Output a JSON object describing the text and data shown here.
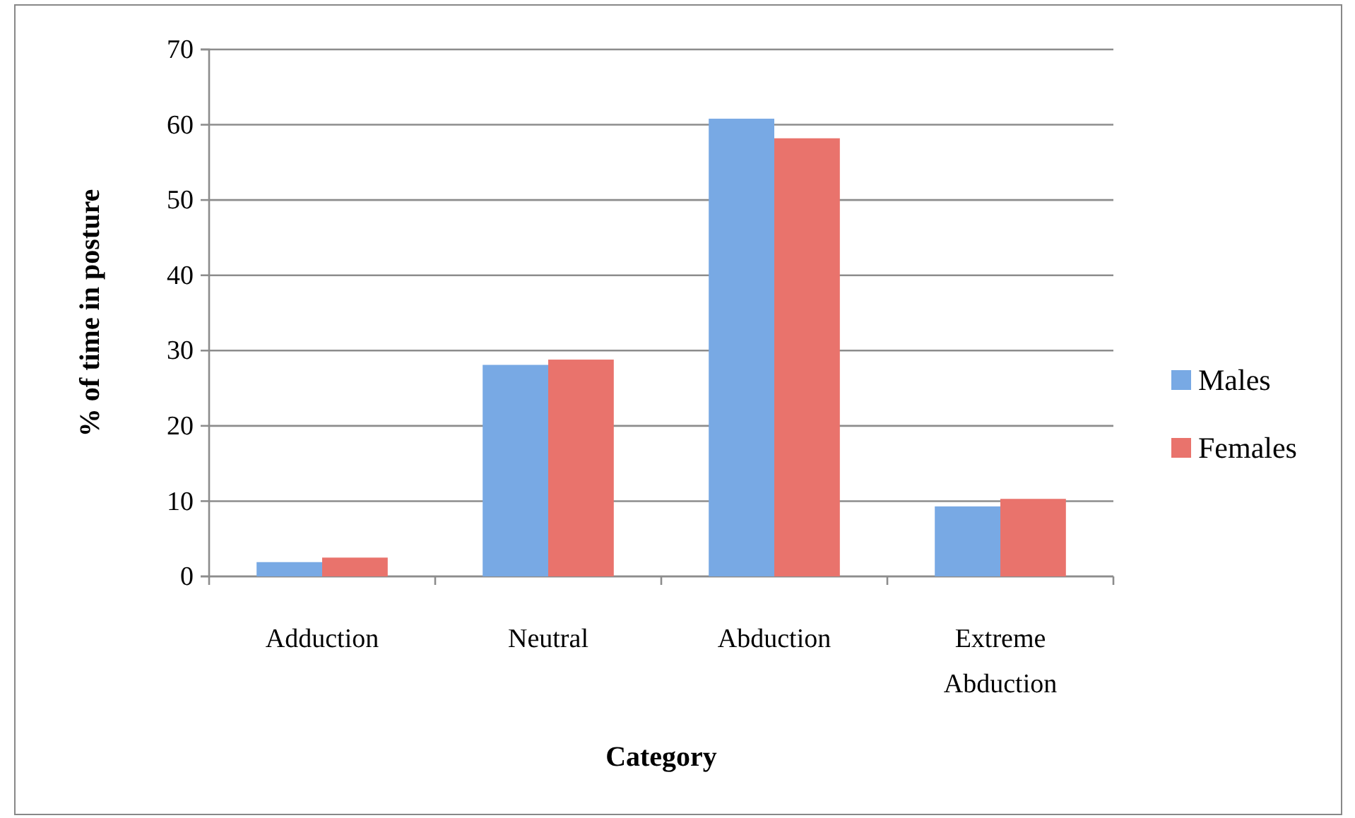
{
  "chart_data": {
    "type": "bar",
    "xlabel": "Category",
    "ylabel": "% of time in posture",
    "categories": [
      "Adduction",
      "Neutral",
      "Abduction",
      "Extreme Abduction"
    ],
    "series": [
      {
        "name": "Males",
        "color": "#78a9e4",
        "values": [
          1.9,
          28.1,
          60.8,
          9.3
        ]
      },
      {
        "name": "Females",
        "color": "#e9736c",
        "values": [
          2.5,
          28.8,
          58.2,
          10.3
        ]
      }
    ],
    "ylim": [
      0,
      70
    ],
    "yticks": [
      0,
      10,
      20,
      30,
      40,
      50,
      60,
      70
    ],
    "grid": "y",
    "legend": "right"
  }
}
